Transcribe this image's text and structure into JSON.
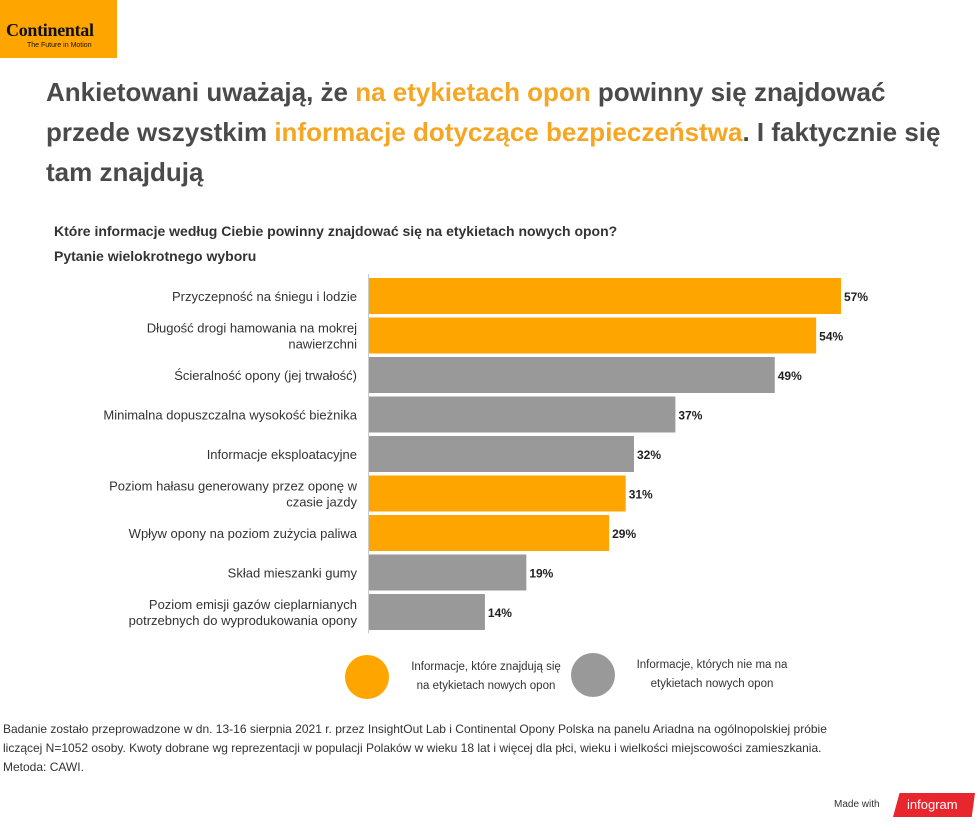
{
  "logo": {
    "brand": "Continental",
    "tagline": "The Future in Motion"
  },
  "headline": {
    "part1": "Ankietowani uważają, że ",
    "highlight1": "na etykietach opon",
    "part2": " powinny się znajdować przede wszystkim ",
    "highlight2": "informacje dotyczące bezpieczeństwa",
    "part3": ". I faktycznie się tam znajdują"
  },
  "question": {
    "line1": "Które informacje według Ciebie powinny znajdować się na etykietach nowych opon?",
    "line2": "Pytanie wielokrotnego wyboru"
  },
  "colors": {
    "accent": "#ffa500",
    "neutral": "#999999",
    "highlight_text": "#f5a623",
    "headline_text": "#4a4a4a"
  },
  "chart_data": {
    "type": "bar",
    "orientation": "horizontal",
    "categories": [
      [
        "Przyczepność na śniegu i lodzie"
      ],
      [
        "Długość drogi hamowania na mokrej",
        "nawierzchni"
      ],
      [
        "Ścieralność opony (jej trwałość)"
      ],
      [
        "Minimalna dopuszczalna wysokość bieżnika"
      ],
      [
        "Informacje eksploatacyjne"
      ],
      [
        "Poziom hałasu generowany przez oponę w",
        "czasie jazdy"
      ],
      [
        "Wpływ opony na poziom zużycia paliwa"
      ],
      [
        "Skład mieszanki gumy"
      ],
      [
        "Poziom emisji gazów cieplarnianych",
        "potrzebnych do wyprodukowania opony"
      ]
    ],
    "values": [
      57,
      54,
      49,
      37,
      32,
      31,
      29,
      19,
      14
    ],
    "value_labels": [
      "57%",
      "54%",
      "49%",
      "37%",
      "32%",
      "31%",
      "29%",
      "19%",
      "14%"
    ],
    "on_label": [
      true,
      true,
      false,
      false,
      false,
      true,
      true,
      false,
      false
    ],
    "legend": [
      {
        "text": [
          "Informacje, które znajdują się",
          "na etykietach nowych opon"
        ],
        "color": "#ffa500"
      },
      {
        "text": [
          "Informacje, których nie ma na",
          "etykietach nowych opon"
        ],
        "color": "#999999"
      }
    ]
  },
  "footnote": {
    "line1": "Badanie zostało przeprowadzone w dn. 13-16 sierpnia 2021 r. przez InsightOut Lab i Continental Opony Polska na panelu Ariadna na ogólnopolskiej próbie",
    "line2": "liczącej N=1052 osoby. Kwoty dobrane wg reprezentacji w populacji Polaków w wieku 18 lat i więcej dla płci, wieku i wielkości miejscowości zamieszkania.",
    "line3": "Metoda: CAWI."
  },
  "branding": {
    "made_with": "Made with",
    "infogram": "infogram"
  }
}
